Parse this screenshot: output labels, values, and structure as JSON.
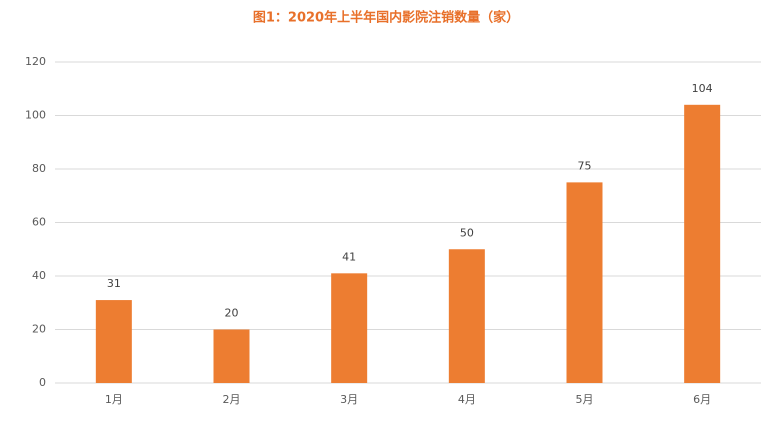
{
  "chart_data": {
    "type": "bar",
    "title": "图1：2020年上半年国内影院注销数量（家）",
    "categories": [
      "1月",
      "2月",
      "3月",
      "4月",
      "5月",
      "6月"
    ],
    "values": [
      31,
      20,
      41,
      50,
      75,
      104
    ],
    "color": "#ed7d31",
    "ylim": [
      0,
      120
    ],
    "yticks": [
      0,
      20,
      40,
      60,
      80,
      100,
      120
    ],
    "grid": true
  }
}
